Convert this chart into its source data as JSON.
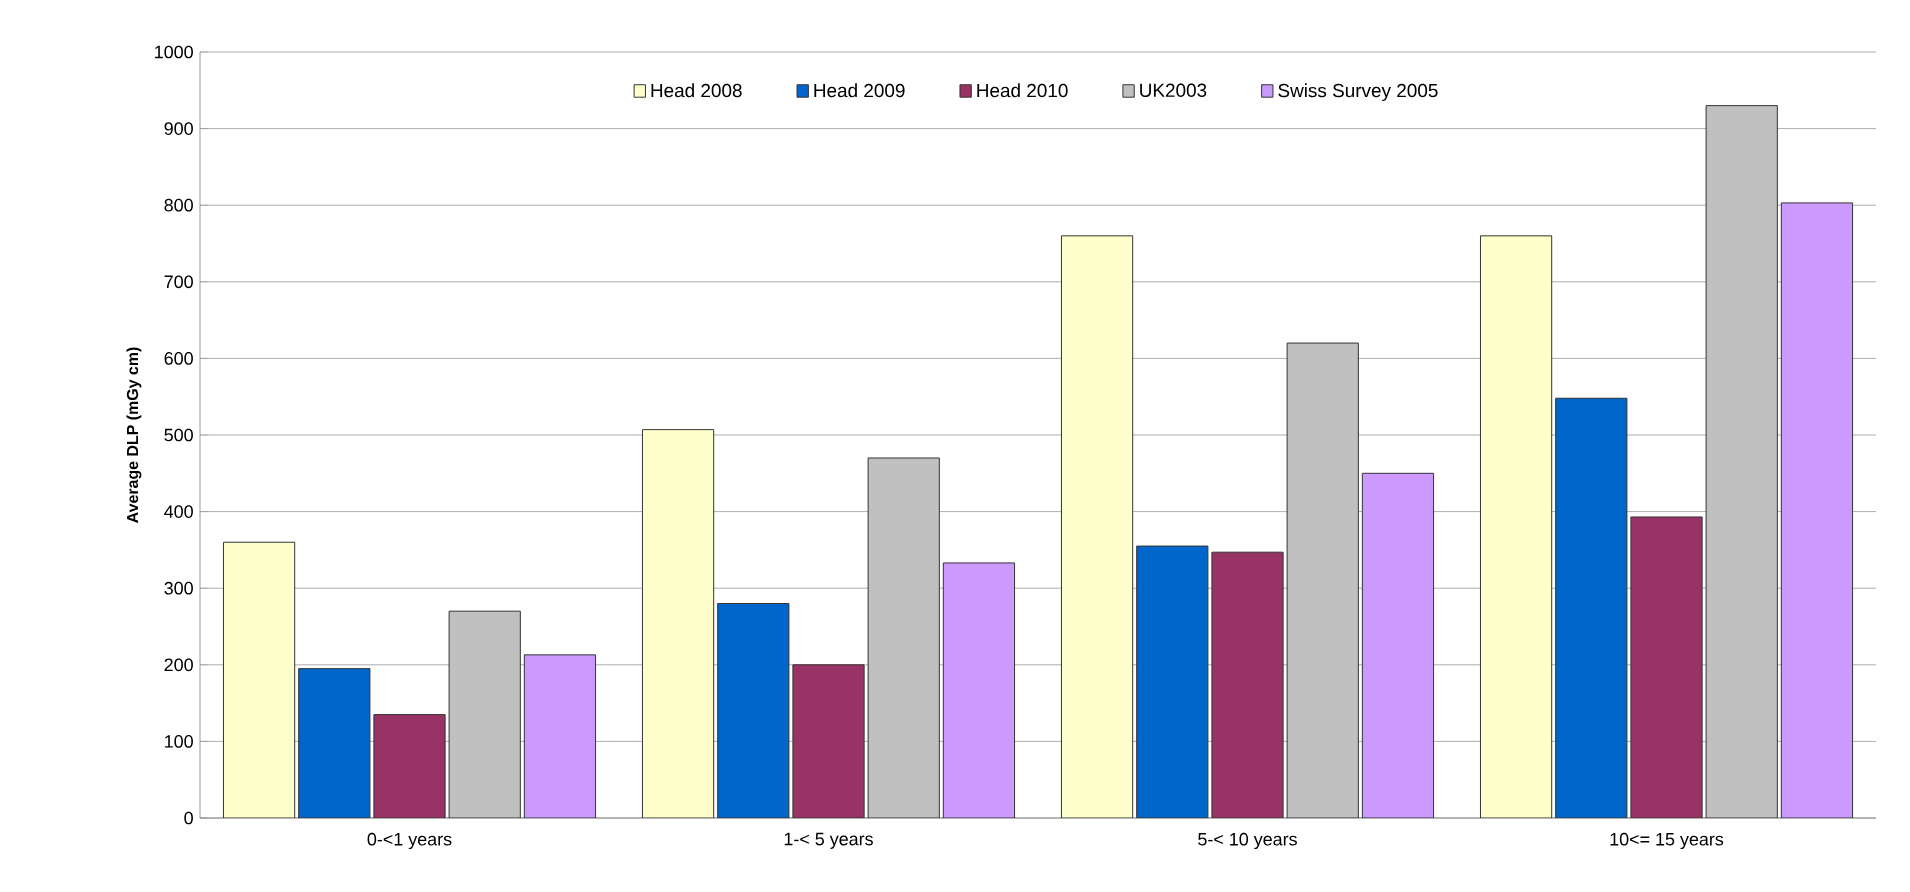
{
  "chart_data": {
    "type": "bar",
    "ylabel": "Average DLP (mGy cm)",
    "categories": [
      "0-<1 years",
      "1-< 5 years",
      "5-< 10 years",
      "10<= 15 years"
    ],
    "series": [
      {
        "name": "Head 2008",
        "color": "#ffffcc",
        "values": [
          360,
          507,
          760,
          760
        ]
      },
      {
        "name": "Head 2009",
        "color": "#0066cc",
        "values": [
          195,
          280,
          355,
          548
        ]
      },
      {
        "name": "Head 2010",
        "color": "#993366",
        "values": [
          135,
          200,
          347,
          393
        ]
      },
      {
        "name": "UK2003",
        "color": "#c0c0c0",
        "values": [
          270,
          470,
          620,
          930
        ]
      },
      {
        "name": "Swiss Survey 2005",
        "color": "#cc99ff",
        "values": [
          213,
          333,
          450,
          803
        ]
      }
    ],
    "ylim": [
      0,
      1000
    ],
    "yticks": [
      0,
      100,
      200,
      300,
      400,
      500,
      600,
      700,
      800,
      900,
      1000
    ],
    "grid": "y",
    "legend": "top"
  }
}
